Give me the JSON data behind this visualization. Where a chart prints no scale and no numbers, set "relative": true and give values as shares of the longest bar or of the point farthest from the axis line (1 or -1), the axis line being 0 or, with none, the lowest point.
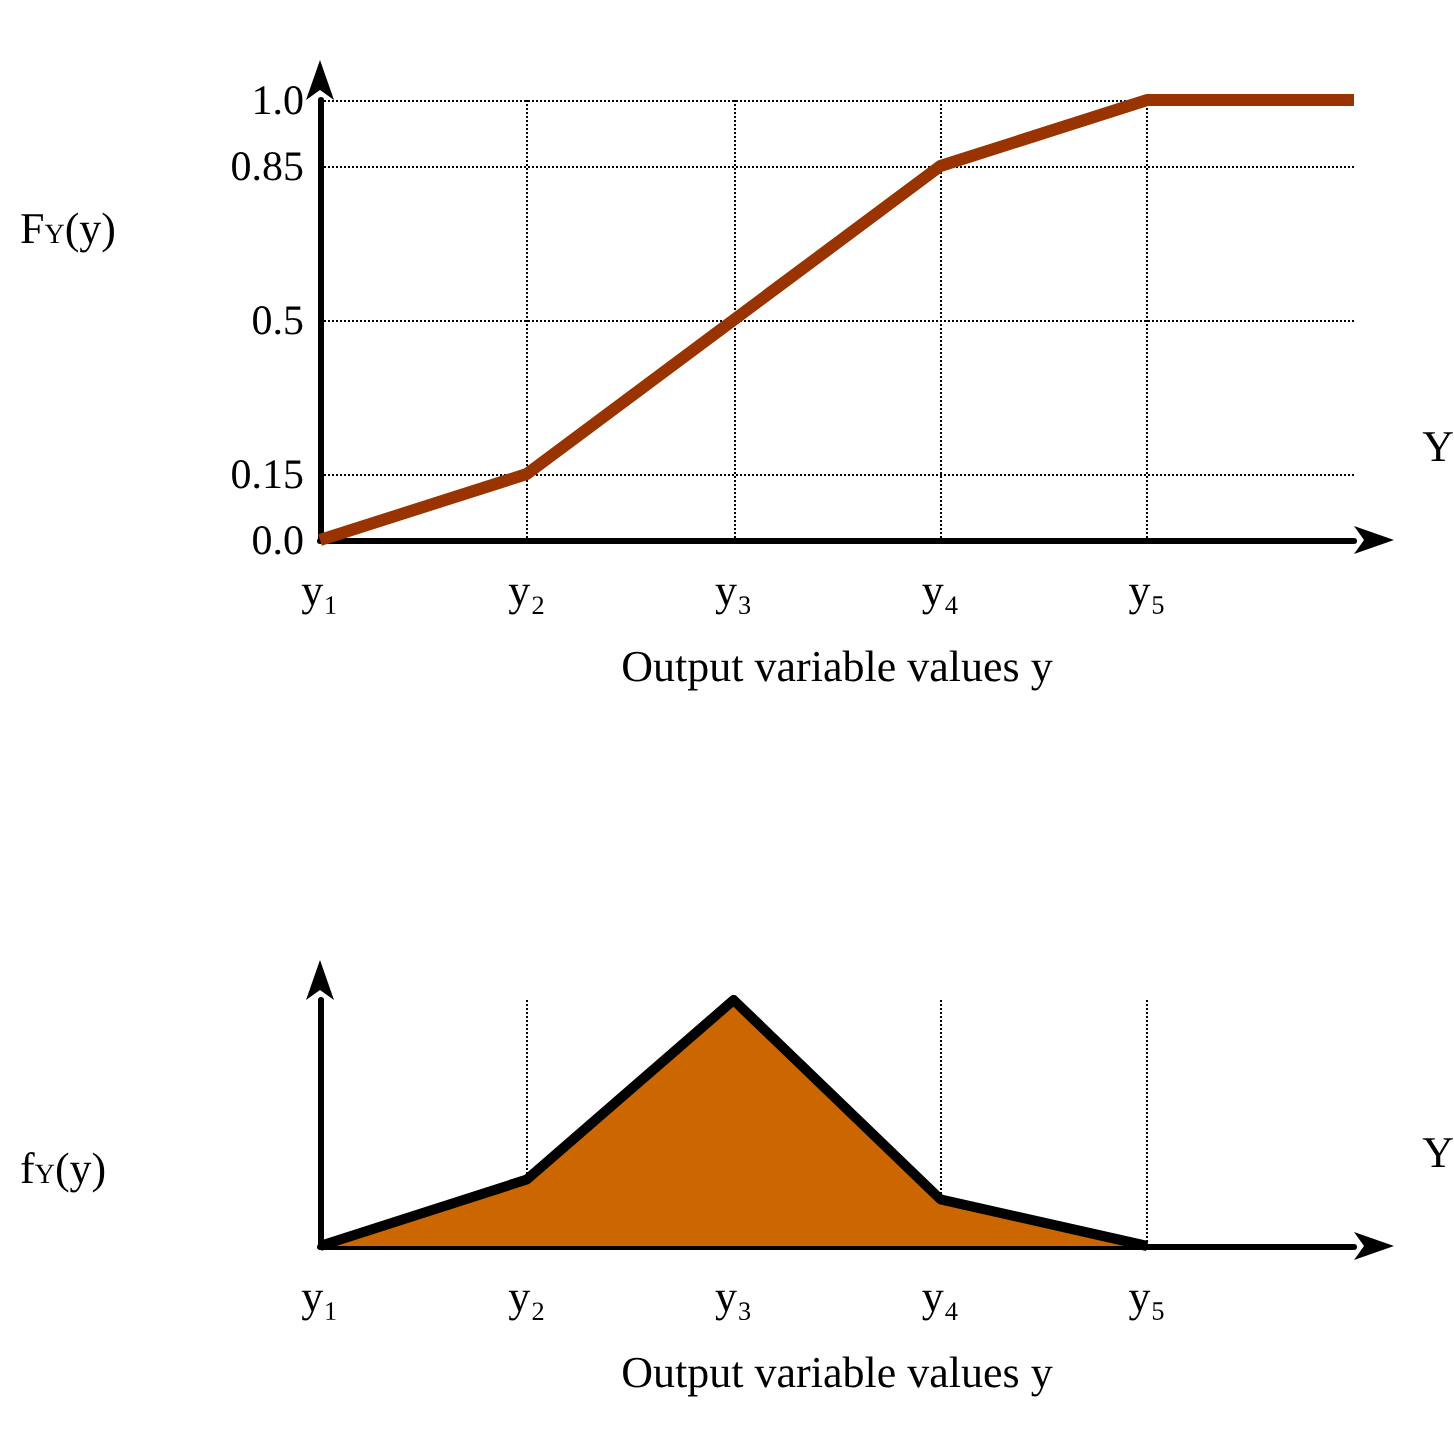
{
  "chart_data": [
    {
      "type": "line",
      "ylabel": "F$_{Y}$(y)",
      "xlabel": "Output variable values y",
      "annotations": [
        "Y"
      ],
      "categories": [
        "y₁",
        "y₂",
        "y₃",
        "y₄",
        "y₅",
        null
      ],
      "series": [
        {
          "color": "#993300",
          "values": [
            0,
            0.15,
            0.5,
            0.85,
            1.0,
            1.0
          ]
        }
      ],
      "ylim": [
        0,
        1.0
      ],
      "yticks": [
        {
          "value": 0,
          "label": "0.0"
        },
        0.15,
        0.5,
        0.85,
        {
          "value": 1,
          "label": "1.0"
        }
      ],
      "grid": true,
      "marker": "none"
    },
    {
      "type": "area",
      "ylabel": "f$_{Y}$(y)",
      "xlabel": "Output variable values y",
      "annotations": [
        "Y"
      ],
      "categories": [
        "y₁",
        "y₂",
        "y₃",
        "y₄",
        "y₅",
        null
      ],
      "series": [
        {
          "color": "#cc6600",
          "values": [
            0,
            0.27,
            1,
            0.19,
            0,
            null
          ]
        }
      ],
      "relative": true,
      "grid": "x",
      "marker": "none"
    }
  ]
}
